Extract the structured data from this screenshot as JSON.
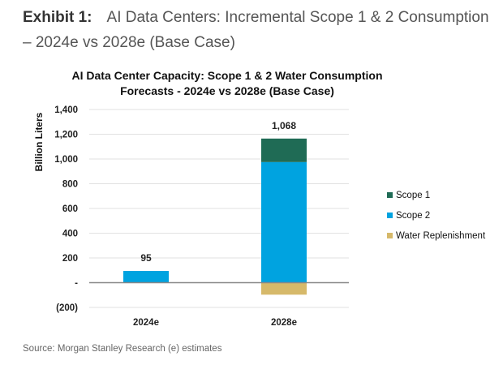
{
  "exhibit": {
    "label": "Exhibit 1:",
    "title": "AI Data Centers: Incremental Scope 1 & 2 Consumption – 2024e vs 2028e (Base Case)"
  },
  "source": "Source: Morgan Stanley Research (e) estimates",
  "chart_data": {
    "type": "bar",
    "stacked": true,
    "title_line1": "AI Data Center Capacity:  Scope 1 & 2 Water Consumption",
    "title_line2": "Forecasts - 2024e vs 2028e  (Base Case)",
    "xlabel": "",
    "ylabel": "Billion Liters",
    "categories": [
      "2024e",
      "2028e"
    ],
    "series": [
      {
        "name": "Scope 1",
        "color": "#1f6b55",
        "values": [
          0,
          190
        ]
      },
      {
        "name": "Scope 2",
        "color": "#00a3e0",
        "values": [
          95,
          975
        ]
      },
      {
        "name": "Water Replenishment",
        "color": "#d6b96a",
        "values": [
          0,
          -97
        ]
      }
    ],
    "totals_labels": [
      "95",
      "1,068"
    ],
    "totals": [
      95,
      1068
    ],
    "ylim": [
      -200,
      1400
    ],
    "yticks": [
      1400,
      1200,
      1000,
      800,
      600,
      400,
      200,
      0,
      -200
    ],
    "ytick_labels": [
      "1,400",
      "1,200",
      "1,000",
      "800",
      "600",
      "400",
      "200",
      "-",
      "(200)"
    ],
    "grid": true,
    "legend_position": "right"
  }
}
